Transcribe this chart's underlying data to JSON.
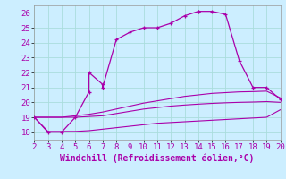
{
  "bg_color": "#cceeff",
  "line_color": "#aa00aa",
  "xlabel": "Windchill (Refroidissement éolien,°C)",
  "xlim": [
    2,
    20
  ],
  "ylim": [
    17.5,
    26.5
  ],
  "yticks": [
    18,
    19,
    20,
    21,
    22,
    23,
    24,
    25,
    26
  ],
  "xticks": [
    2,
    3,
    4,
    5,
    6,
    7,
    8,
    9,
    10,
    11,
    12,
    13,
    14,
    15,
    16,
    17,
    18,
    19,
    20
  ],
  "main_x": [
    2,
    3,
    4,
    5,
    6,
    6,
    7,
    7,
    8,
    9,
    10,
    11,
    12,
    13,
    14,
    14,
    15,
    16,
    17,
    18,
    19,
    20
  ],
  "main_y": [
    19,
    18,
    18,
    19,
    20.7,
    22,
    21.2,
    21,
    24.2,
    24.7,
    25,
    25,
    25.3,
    25.8,
    26.1,
    26.1,
    26.1,
    25.9,
    22.8,
    21,
    21,
    20.2
  ],
  "line2_x": [
    2,
    3,
    4,
    5,
    6,
    7,
    8,
    9,
    10,
    11,
    12,
    13,
    14,
    15,
    16,
    17,
    18,
    19,
    20
  ],
  "line2_y": [
    19,
    19,
    19,
    19.1,
    19.2,
    19.35,
    19.55,
    19.75,
    19.95,
    20.1,
    20.25,
    20.4,
    20.5,
    20.6,
    20.65,
    20.7,
    20.72,
    20.75,
    20.3
  ],
  "line3_x": [
    2,
    3,
    4,
    5,
    6,
    7,
    8,
    9,
    10,
    11,
    12,
    13,
    14,
    15,
    16,
    17,
    18,
    19,
    20
  ],
  "line3_y": [
    19,
    19,
    19,
    19.0,
    19.05,
    19.1,
    19.25,
    19.4,
    19.55,
    19.65,
    19.75,
    19.82,
    19.88,
    19.93,
    19.97,
    20.0,
    20.02,
    20.05,
    20.0
  ],
  "line4_x": [
    2,
    3,
    4,
    5,
    6,
    7,
    8,
    9,
    10,
    11,
    12,
    13,
    14,
    15,
    16,
    17,
    18,
    19,
    20
  ],
  "line4_y": [
    19,
    18.05,
    18.05,
    18.05,
    18.1,
    18.2,
    18.3,
    18.4,
    18.5,
    18.6,
    18.65,
    18.7,
    18.75,
    18.8,
    18.85,
    18.9,
    18.95,
    19.0,
    19.5
  ],
  "grid_color": "#aadddd",
  "font_color": "#aa00aa",
  "font_size": 6.5,
  "xlabel_fontsize": 7
}
